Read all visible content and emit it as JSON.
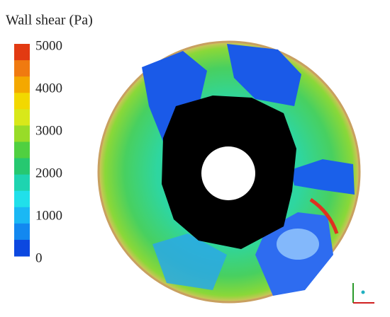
{
  "legend": {
    "title": "Wall shear (Pa)",
    "ticks": [
      "5000",
      "4000",
      "3000",
      "2000",
      "1000",
      "0"
    ],
    "colors": [
      "#e23a12",
      "#f07a10",
      "#f4a800",
      "#f2d800",
      "#d8e81a",
      "#98dc28",
      "#50d040",
      "#26c870",
      "#1ed4b0",
      "#20e0ea",
      "#1ab8f4",
      "#1288f0",
      "#0c48e0"
    ]
  }
}
